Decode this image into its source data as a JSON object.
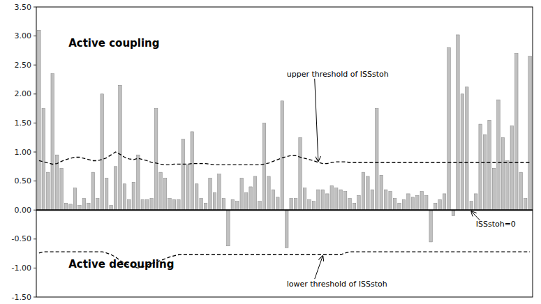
{
  "chart_data": {
    "type": "bar",
    "series": [
      {
        "type": "bar",
        "color": "#c0c0c0",
        "values": [
          3.1,
          1.75,
          0.65,
          2.35,
          0.95,
          0.72,
          0.12,
          0.1,
          0.38,
          0.08,
          0.2,
          0.12,
          0.65,
          0.2,
          2.0,
          0.55,
          0.08,
          0.75,
          2.15,
          0.45,
          0.18,
          0.48,
          0.95,
          0.18,
          0.18,
          0.2,
          1.75,
          0.65,
          0.55,
          0.2,
          0.18,
          0.18,
          1.22,
          0.78,
          1.35,
          0.45,
          0.2,
          0.12,
          0.55,
          0.3,
          0.62,
          0.2,
          -0.62,
          0.18,
          0.15,
          0.55,
          0.3,
          0.4,
          0.58,
          0.15,
          1.5,
          0.58,
          0.35,
          0.22,
          1.88,
          -0.65,
          0.2,
          0.2,
          1.25,
          0.38,
          0.18,
          0.15,
          0.35,
          0.35,
          0.28,
          0.42,
          0.38,
          0.35,
          0.32,
          0.2,
          0.12,
          0.25,
          0.65,
          0.58,
          0.35,
          1.75,
          0.6,
          0.35,
          0.32,
          0.2,
          0.12,
          0.18,
          0.28,
          0.22,
          0.25,
          0.32,
          0.25,
          -0.55,
          0.12,
          0.18,
          0.28,
          2.8,
          -0.1,
          3.02,
          2.0,
          2.12,
          0.15,
          0.28,
          1.48,
          1.3,
          1.55,
          0.72,
          1.9,
          1.25,
          0.85,
          1.45,
          2.7,
          0.65,
          0.2,
          2.65
        ]
      },
      {
        "type": "line",
        "color": "#000000",
        "line_style": "dashed",
        "values": [
          0.85,
          0.83,
          0.81,
          0.79,
          0.8,
          0.84,
          0.87,
          0.89,
          0.91,
          0.91,
          0.89,
          0.87,
          0.85,
          0.85,
          0.87,
          0.9,
          0.95,
          1.0,
          0.96,
          0.91,
          0.88,
          0.87,
          0.89,
          0.87,
          0.85,
          0.82,
          0.81,
          0.79,
          0.78,
          0.78,
          0.79,
          0.79,
          0.79,
          0.79,
          0.8,
          0.8,
          0.8,
          0.8,
          0.79,
          0.78,
          0.78,
          0.78,
          0.78,
          0.78,
          0.78,
          0.78,
          0.78,
          0.78,
          0.78,
          0.78,
          0.79,
          0.81,
          0.84,
          0.87,
          0.9,
          0.92,
          0.94,
          0.94,
          0.91,
          0.89,
          0.87,
          0.85,
          0.82,
          0.8,
          0.8,
          0.82,
          0.83,
          0.83,
          0.83,
          0.82,
          0.82,
          0.82,
          0.82,
          0.82,
          0.82,
          0.82,
          0.82,
          0.82,
          0.82,
          0.82,
          0.82,
          0.82,
          0.82,
          0.82,
          0.82,
          0.82,
          0.82,
          0.82,
          0.82,
          0.82,
          0.82,
          0.82,
          0.82,
          0.82,
          0.82,
          0.82,
          0.82,
          0.82,
          0.82,
          0.82,
          0.82,
          0.82,
          0.82,
          0.82,
          0.82,
          0.82,
          0.82,
          0.82,
          0.82,
          0.82
        ]
      },
      {
        "type": "line",
        "color": "#000000",
        "line_style": "dashed",
        "values": [
          -0.74,
          -0.72,
          -0.72,
          -0.72,
          -0.72,
          -0.72,
          -0.72,
          -0.72,
          -0.72,
          -0.72,
          -0.72,
          -0.72,
          -0.72,
          -0.72,
          -0.72,
          -0.74,
          -0.77,
          -0.81,
          -0.87,
          -0.92,
          -0.95,
          -0.98,
          -1.0,
          -0.98,
          -0.95,
          -0.92,
          -0.9,
          -0.87,
          -0.84,
          -0.81,
          -0.79,
          -0.77,
          -0.77,
          -0.77,
          -0.77,
          -0.77,
          -0.77,
          -0.77,
          -0.77,
          -0.77,
          -0.77,
          -0.77,
          -0.77,
          -0.77,
          -0.77,
          -0.77,
          -0.77,
          -0.77,
          -0.77,
          -0.77,
          -0.77,
          -0.77,
          -0.77,
          -0.77,
          -0.77,
          -0.77,
          -0.77,
          -0.77,
          -0.77,
          -0.77,
          -0.77,
          -0.77,
          -0.77,
          -0.77,
          -0.77,
          -0.77,
          -0.77,
          -0.77,
          -0.74,
          -0.72,
          -0.72,
          -0.72,
          -0.72,
          -0.72,
          -0.72,
          -0.72,
          -0.72,
          -0.72,
          -0.72,
          -0.72,
          -0.72,
          -0.72,
          -0.72,
          -0.72,
          -0.72,
          -0.72,
          -0.72,
          -0.72,
          -0.72,
          -0.72,
          -0.72,
          -0.72,
          -0.72,
          -0.72,
          -0.72,
          -0.72,
          -0.72,
          -0.72,
          -0.72,
          -0.72,
          -0.72,
          -0.72,
          -0.72,
          -0.72,
          -0.72,
          -0.72,
          -0.72,
          -0.72,
          -0.72,
          -0.72
        ]
      }
    ],
    "ylim": [
      -1.5,
      3.5
    ],
    "yticks": [
      {
        "value": -1.5,
        "label": "-1.50"
      },
      {
        "value": -1,
        "label": "-1.00"
      },
      {
        "value": -0.5,
        "label": "-0.50"
      },
      {
        "value": 0,
        "label": "0.00"
      },
      {
        "value": 0.5,
        "label": "0.50"
      },
      {
        "value": 1,
        "label": "1.00"
      },
      {
        "value": 1.5,
        "label": "1.50"
      },
      {
        "value": 2,
        "label": "2.00"
      },
      {
        "value": 2.5,
        "label": "2.50"
      },
      {
        "value": 3,
        "label": "3.00"
      },
      {
        "value": 3.5,
        "label": "3.50"
      }
    ],
    "grid": false,
    "tick_labels": "y",
    "annotations": [
      "Active coupling",
      "Active decoupling",
      "upper threshold of ISSstoh",
      "lower threshold of ISSstoh",
      "ISSstoh=0"
    ]
  }
}
